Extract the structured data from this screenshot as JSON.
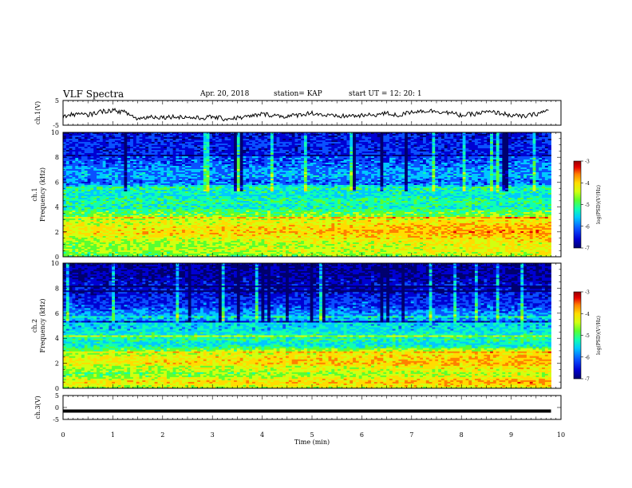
{
  "header": {
    "title": "VLF Spectra",
    "date": "Apr. 20, 2018",
    "station": "station= KAP",
    "start": "start  UT =   12: 20: 1"
  },
  "colors": {
    "spectrogram_palette": [
      "#00006e",
      "#0000d2",
      "#0a50ff",
      "#00c8ff",
      "#10ffb0",
      "#5aff30",
      "#d2ff10",
      "#ffdc00",
      "#ff8000",
      "#e60000",
      "#960000"
    ],
    "trace": "#000000"
  },
  "chart_data": [
    {
      "type": "line",
      "name": "ch1-waveform",
      "ylabel": "ch.1(V)",
      "ylim": [
        -5,
        5
      ],
      "yticks": [
        "5",
        "-5"
      ],
      "x": [
        0,
        0.25,
        0.5,
        0.75,
        1,
        1.25,
        1.5,
        1.75,
        2,
        2.25,
        2.5,
        2.75,
        3,
        3.25,
        3.5,
        3.75,
        4,
        4.25,
        4.5,
        4.75,
        5,
        5.25,
        5.5,
        5.75,
        6,
        6.25,
        6.5,
        6.75,
        7,
        7.25,
        7.5,
        7.75,
        8,
        8.25,
        8.5,
        8.75,
        9,
        9.25,
        9.5,
        9.75
      ],
      "y": [
        -1.5,
        -0.5,
        -0.9,
        0.5,
        1,
        0.2,
        -2.5,
        -1.5,
        -1.8,
        -1.5,
        -1.8,
        -2.2,
        -1.6,
        -2.5,
        -2,
        -1.5,
        -0.5,
        -1,
        -1.5,
        -0.8,
        0,
        -1,
        -1.5,
        -1.2,
        -1.2,
        -0.8,
        -0.2,
        -1.1,
        0.5,
        0.8,
        0.7,
        0,
        -1,
        -0.5,
        0.3,
        0,
        -1,
        -1.5,
        -0.5,
        1
      ]
    },
    {
      "type": "heatmap",
      "name": "ch1-spectrogram",
      "ylabel": "ch.1",
      "ylabel2": "Frequency (kHz)",
      "xlim": [
        0,
        10
      ],
      "ylim": [
        0,
        10
      ],
      "yticks": [
        "0",
        "2",
        "4",
        "6",
        "8",
        "10"
      ],
      "colorbar": {
        "label": "log(PSD)(V²/Hz)",
        "ticks": [
          "-3",
          "-4",
          "-5",
          "-6",
          "-7"
        ],
        "range": [
          -7,
          -3
        ]
      },
      "profile_freq_khz": [
        0,
        0.5,
        1,
        1.5,
        2,
        2.5,
        3,
        3.5,
        4,
        4.5,
        5,
        5.5,
        6,
        6.5,
        7,
        7.5,
        8,
        8.5,
        9,
        9.5,
        10
      ],
      "profile_log_psd": [
        -5.2,
        -4.8,
        -4.9,
        -4.6,
        -4.3,
        -4.5,
        -4.9,
        -5.0,
        -5.5,
        -5.3,
        -5.6,
        -5.3,
        -6.2,
        -5.9,
        -6.0,
        -6.2,
        -6.3,
        -6.5,
        -6.4,
        -6.5,
        -6.6
      ]
    },
    {
      "type": "heatmap",
      "name": "ch2-spectrogram",
      "ylabel": "ch.2",
      "ylabel2": "Frequency (kHz)",
      "xlim": [
        0,
        10
      ],
      "ylim": [
        0,
        10
      ],
      "yticks": [
        "0",
        "2",
        "4",
        "6",
        "8",
        "10"
      ],
      "colorbar": {
        "label": "log(PSD)(V²/Hz)",
        "ticks": [
          "-3",
          "-4",
          "-5",
          "-6",
          "-7"
        ],
        "range": [
          -7,
          -3
        ]
      },
      "profile_freq_khz": [
        0,
        0.5,
        1,
        1.5,
        2,
        2.5,
        3,
        3.5,
        4,
        4.5,
        5,
        5.5,
        6,
        6.5,
        7,
        7.5,
        8,
        8.5,
        9,
        9.5,
        10
      ],
      "profile_log_psd": [
        -4.9,
        -4.3,
        -5.0,
        -4.8,
        -4.4,
        -4.5,
        -5.0,
        -5.6,
        -5.4,
        -5.6,
        -5.7,
        -5.9,
        -6.0,
        -6.3,
        -6.4,
        -6.5,
        -6.7,
        -6.7,
        -6.8,
        -6.8,
        -6.9
      ]
    },
    {
      "type": "line",
      "name": "ch3-waveform",
      "ylabel": "ch.3(V)",
      "ylim": [
        -5,
        5
      ],
      "yticks": [
        "5",
        "0",
        "-5"
      ],
      "x": [
        0,
        9.8
      ],
      "y": [
        -1.5,
        -1.5
      ],
      "xlabel": "Time (min)",
      "xticks": [
        "0",
        "1",
        "2",
        "3",
        "4",
        "5",
        "6",
        "7",
        "8",
        "9",
        "10"
      ]
    }
  ]
}
